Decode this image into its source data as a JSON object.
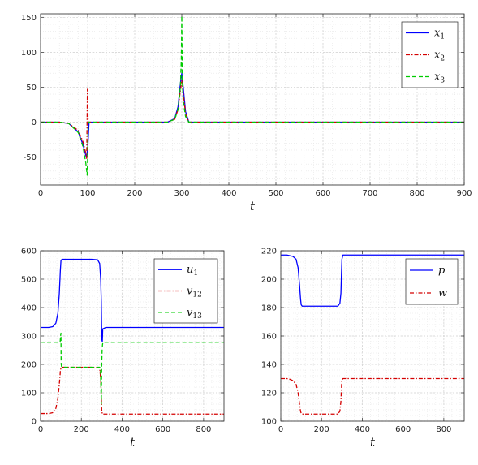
{
  "chart_data": [
    {
      "type": "line",
      "xlabel": "t",
      "xlim": [
        0,
        900
      ],
      "ylim": [
        -90,
        155
      ],
      "xticks": [
        0,
        100,
        200,
        300,
        400,
        500,
        600,
        700,
        800,
        900
      ],
      "yticks": [
        -50,
        0,
        50,
        100,
        150
      ],
      "grid": true,
      "legend_position": "top-right",
      "series": [
        {
          "name": "x",
          "sub": "1",
          "color": "#0000ff",
          "dash": "solid",
          "x": [
            0,
            40,
            60,
            80,
            90,
            97,
            100,
            103,
            110,
            200,
            270,
            285,
            292,
            297,
            300,
            303,
            308,
            315,
            330,
            900
          ],
          "y": [
            0,
            0,
            -2,
            -14,
            -32,
            -50,
            -40,
            0,
            0,
            0,
            0,
            5,
            22,
            55,
            70,
            50,
            15,
            0,
            0,
            0
          ]
        },
        {
          "name": "x",
          "sub": "2",
          "color": "#d40000",
          "dash": "dashdot",
          "x": [
            0,
            40,
            60,
            80,
            90,
            96,
            98,
            99.5,
            101,
            103,
            110,
            270,
            285,
            292,
            297,
            300,
            303,
            308,
            315,
            330,
            900
          ],
          "y": [
            0,
            0,
            -2,
            -12,
            -28,
            -44,
            -52,
            47,
            0,
            0,
            0,
            0,
            4,
            18,
            45,
            60,
            42,
            12,
            0,
            0,
            0
          ]
        },
        {
          "name": "x",
          "sub": "3",
          "color": "#00cc00",
          "dash": "dashed",
          "x": [
            0,
            40,
            60,
            80,
            90,
            96,
            99,
            100,
            101,
            103,
            110,
            270,
            285,
            292,
            297,
            299,
            300,
            301,
            303,
            308,
            315,
            330,
            900
          ],
          "y": [
            0,
            0,
            -2,
            -15,
            -35,
            -58,
            -76,
            -50,
            0,
            0,
            0,
            0,
            4,
            18,
            50,
            90,
            152,
            60,
            30,
            8,
            0,
            0,
            0
          ]
        }
      ]
    },
    {
      "type": "line",
      "xlabel": "t",
      "xlim": [
        0,
        900
      ],
      "ylim": [
        0,
        600
      ],
      "xticks": [
        0,
        200,
        400,
        600,
        800
      ],
      "yticks": [
        0,
        100,
        200,
        300,
        400,
        500,
        600
      ],
      "grid": true,
      "legend_position": "top-right",
      "series": [
        {
          "name": "u",
          "sub": "1",
          "color": "#0000ff",
          "dash": "solid",
          "x": [
            0,
            40,
            60,
            75,
            85,
            92,
            97,
            100,
            105,
            250,
            280,
            290,
            295,
            298,
            300,
            303,
            305,
            320,
            900
          ],
          "y": [
            330,
            330,
            333,
            345,
            380,
            450,
            530,
            565,
            570,
            570,
            568,
            555,
            500,
            420,
            290,
            280,
            325,
            330,
            330
          ]
        },
        {
          "name": "v",
          "sub": "12",
          "color": "#d40000",
          "dash": "dashdot",
          "x": [
            0,
            40,
            60,
            75,
            85,
            92,
            97,
            100,
            105,
            250,
            290,
            295,
            298,
            300,
            303,
            305,
            320,
            900
          ],
          "y": [
            27,
            27,
            30,
            45,
            80,
            130,
            175,
            188,
            190,
            190,
            188,
            150,
            90,
            40,
            25,
            25,
            25,
            25
          ]
        },
        {
          "name": "v",
          "sub": "13",
          "color": "#00cc00",
          "dash": "dashed",
          "x": [
            0,
            96,
            98,
            100,
            101,
            103,
            105,
            290,
            294,
            296,
            298,
            300,
            302,
            304,
            306,
            900
          ],
          "y": [
            278,
            278,
            300,
            310,
            205,
            192,
            190,
            190,
            185,
            120,
            60,
            200,
            250,
            270,
            278,
            278
          ]
        }
      ]
    },
    {
      "type": "line",
      "xlabel": "t",
      "xlim": [
        0,
        900
      ],
      "ylim": [
        100,
        220
      ],
      "xticks": [
        0,
        200,
        400,
        600,
        800
      ],
      "yticks": [
        100,
        120,
        140,
        160,
        180,
        200,
        220
      ],
      "grid": true,
      "legend_position": "top-right",
      "series": [
        {
          "name": "p",
          "sub": "",
          "color": "#0000ff",
          "dash": "solid",
          "x": [
            0,
            30,
            45,
            60,
            75,
            85,
            92,
            97,
            100,
            105,
            260,
            280,
            290,
            295,
            298,
            300,
            305,
            320,
            900
          ],
          "y": [
            217,
            217,
            216.5,
            216,
            214,
            208,
            196,
            186,
            182,
            181,
            181,
            181,
            183,
            190,
            205,
            214,
            217,
            217,
            217
          ]
        },
        {
          "name": "w",
          "sub": "",
          "color": "#d40000",
          "dash": "dashdot",
          "x": [
            0,
            30,
            45,
            60,
            75,
            85,
            92,
            97,
            100,
            105,
            260,
            280,
            290,
            295,
            298,
            300,
            305,
            320,
            900
          ],
          "y": [
            130,
            130,
            129.5,
            128.5,
            126,
            120,
            112,
            107,
            105.5,
            105,
            105,
            105,
            107,
            114,
            124,
            128.5,
            130,
            130,
            130
          ]
        }
      ]
    }
  ]
}
